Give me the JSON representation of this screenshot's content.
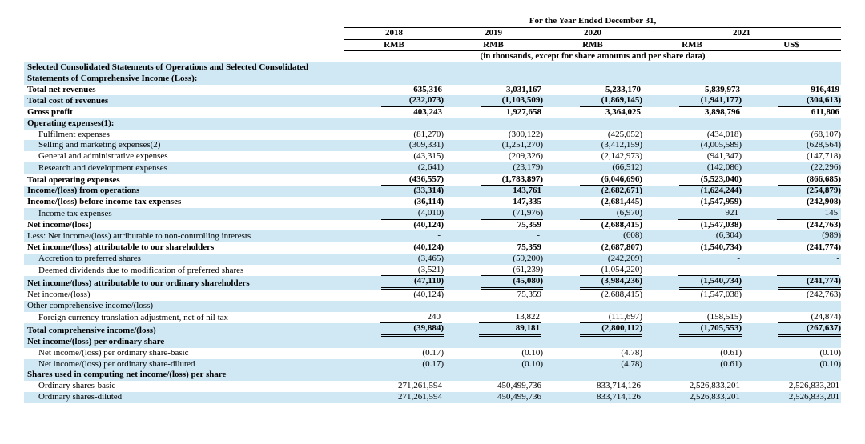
{
  "colors": {
    "band_blue": "#cfe8f4",
    "band_white": "#ffffff",
    "text": "#000000",
    "rule": "#000000"
  },
  "typography": {
    "font_family": "Times New Roman",
    "font_size_pt": 8.5,
    "bold_weight": 700
  },
  "header": {
    "super": "For the Year Ended December 31,",
    "years": [
      "2018",
      "2019",
      "2020",
      "2021"
    ],
    "units": [
      "RMB",
      "RMB",
      "RMB",
      "RMB",
      "US$"
    ],
    "subnote": "(in thousands, except for share amounts and per share data)"
  },
  "section_title_a": "Selected Consolidated Statements of Operations and Selected Consolidated",
  "section_title_b": "Statements of Comprehensive Income (Loss):",
  "rows": [
    {
      "k": "r0",
      "label": "Total net revenues",
      "bold": true,
      "band": "white",
      "vals": [
        "635,316",
        "3,031,167",
        "5,233,170",
        "5,839,973",
        "916,419"
      ]
    },
    {
      "k": "r1",
      "label": "Total cost of revenues",
      "bold": true,
      "band": "blue",
      "underline": "single",
      "vals": [
        "(232,073)",
        "(1,103,509)",
        "(1,869,145)",
        "(1,941,177)",
        "(304,613)"
      ]
    },
    {
      "k": "r2",
      "label": "Gross profit",
      "bold": true,
      "band": "white",
      "vals": [
        "403,243",
        "1,927,658",
        "3,364,025",
        "3,898,796",
        "611,806"
      ]
    },
    {
      "k": "r3",
      "label": "Operating expenses(1):",
      "bold": true,
      "band": "blue",
      "vals": [
        "",
        "",
        "",
        "",
        ""
      ]
    },
    {
      "k": "r4",
      "label": "Fulfilment expenses",
      "indent": 1,
      "band": "white",
      "vals": [
        "(81,270)",
        "(300,122)",
        "(425,052)",
        "(434,018)",
        "(68,107)"
      ]
    },
    {
      "k": "r5",
      "label": "Selling and marketing expenses(2)",
      "indent": 1,
      "band": "blue",
      "vals": [
        "(309,331)",
        "(1,251,270)",
        "(3,412,159)",
        "(4,005,589)",
        "(628,564)"
      ]
    },
    {
      "k": "r6",
      "label": "General and administrative expenses",
      "indent": 1,
      "band": "white",
      "vals": [
        "(43,315)",
        "(209,326)",
        "(2,142,973)",
        "(941,347)",
        "(147,718)"
      ]
    },
    {
      "k": "r7",
      "label": "Research and development expenses",
      "indent": 1,
      "band": "blue",
      "underline": "single",
      "vals": [
        "(2,641)",
        "(23,179)",
        "(66,512)",
        "(142,086)",
        "(22,296)"
      ]
    },
    {
      "k": "r8",
      "label": "Total operating expenses",
      "bold": true,
      "band": "white",
      "underline": "single",
      "vals": [
        "(436,557)",
        "(1,783,897)",
        "(6,046,696)",
        "(5,523,040)",
        "(866,685)"
      ]
    },
    {
      "k": "r9",
      "label": "Income/(loss) from operations",
      "bold": true,
      "band": "blue",
      "vals": [
        "(33,314)",
        "143,761",
        "(2,682,671)",
        "(1,624,244)",
        "(254,879)"
      ]
    },
    {
      "k": "r10",
      "label": "Income/(loss) before income tax expenses",
      "bold": true,
      "band": "white",
      "vals": [
        "(36,114)",
        "147,335",
        "(2,681,445)",
        "(1,547,959)",
        "(242,908)"
      ]
    },
    {
      "k": "r11",
      "label": "Income tax expenses",
      "indent": 1,
      "band": "blue",
      "underline": "single",
      "vals": [
        "(4,010)",
        "(71,976)",
        "(6,970)",
        "921",
        "145"
      ]
    },
    {
      "k": "r12",
      "label": "Net income/(loss)",
      "bold": true,
      "band": "white",
      "vals": [
        "(40,124)",
        "75,359",
        "(2,688,415)",
        "(1,547,038)",
        "(242,763)"
      ]
    },
    {
      "k": "r13",
      "label": "Less: Net income/(loss) attributable to non-controlling interests",
      "band": "blue",
      "underline": "single",
      "vals": [
        "-",
        "-",
        "(608)",
        "(6,304)",
        "(989)"
      ]
    },
    {
      "k": "r14",
      "label": "Net income/(loss) attributable to our shareholders",
      "bold": true,
      "band": "white",
      "vals": [
        "(40,124)",
        "75,359",
        "(2,687,807)",
        "(1,540,734)",
        "(241,774)"
      ]
    },
    {
      "k": "r15",
      "label": "Accretion to preferred shares",
      "indent": 1,
      "band": "blue",
      "vals": [
        "(3,465)",
        "(59,200)",
        "(242,209)",
        "-",
        "-"
      ]
    },
    {
      "k": "r16",
      "label": "Deemed dividends due to modification of preferred shares",
      "indent": 1,
      "band": "white",
      "underline": "single",
      "vals": [
        "(3,521)",
        "(61,239)",
        "(1,054,220)",
        "-",
        "-"
      ]
    },
    {
      "k": "r17",
      "label": "Net income/(loss) attributable to our ordinary shareholders",
      "bold": true,
      "band": "blue",
      "underline": "double",
      "vals": [
        "(47,110)",
        "(45,080)",
        "(3,984,236)",
        "(1,540,734)",
        "(241,774)"
      ]
    },
    {
      "k": "r18",
      "label": "Net income/(loss)",
      "band": "white",
      "vals": [
        "(40,124)",
        "75,359",
        "(2,688,415)",
        "(1,547,038)",
        "(242,763)"
      ]
    },
    {
      "k": "r19",
      "label": "Other comprehensive income/(loss)",
      "band": "blue",
      "vals": [
        "",
        "",
        "",
        "",
        ""
      ]
    },
    {
      "k": "r20",
      "label": "Foreign currency translation adjustment, net of nil tax",
      "indent": 1,
      "band": "white",
      "underline": "single",
      "vals": [
        "240",
        "13,822",
        "(111,697)",
        "(158,515)",
        "(24,874)"
      ]
    },
    {
      "k": "r21",
      "label": "Total comprehensive income/(loss)",
      "bold": true,
      "band": "blue",
      "underline": "double",
      "vals": [
        "(39,884)",
        "89,181",
        "(2,800,112)",
        "(1,705,553)",
        "(267,637)"
      ]
    },
    {
      "k": "r22",
      "label": "Net income/(loss) per ordinary share",
      "bold": true,
      "band": "blue",
      "vals": [
        "",
        "",
        "",
        "",
        ""
      ]
    },
    {
      "k": "r23",
      "label": "Net income/(loss) per ordinary share-basic",
      "indent": 1,
      "band": "white",
      "vals": [
        "(0.17)",
        "(0.10)",
        "(4.78)",
        "(0.61)",
        "(0.10)"
      ]
    },
    {
      "k": "r24",
      "label": "Net income/(loss) per ordinary share-diluted",
      "indent": 1,
      "band": "blue",
      "vals": [
        "(0.17)",
        "(0.10)",
        "(4.78)",
        "(0.61)",
        "(0.10)"
      ]
    },
    {
      "k": "r25",
      "label": "Shares used in computing net income/(loss) per share",
      "bold": true,
      "band": "blue",
      "vals": [
        "",
        "",
        "",
        "",
        ""
      ]
    },
    {
      "k": "r26",
      "label": "Ordinary shares-basic",
      "indent": 1,
      "band": "white",
      "vals": [
        "271,261,594",
        "450,499,736",
        "833,714,126",
        "2,526,833,201",
        "2,526,833,201"
      ]
    },
    {
      "k": "r27",
      "label": "Ordinary shares-diluted",
      "indent": 1,
      "band": "blue",
      "vals": [
        "271,261,594",
        "450,499,736",
        "833,714,126",
        "2,526,833,201",
        "2,526,833,201"
      ]
    }
  ]
}
